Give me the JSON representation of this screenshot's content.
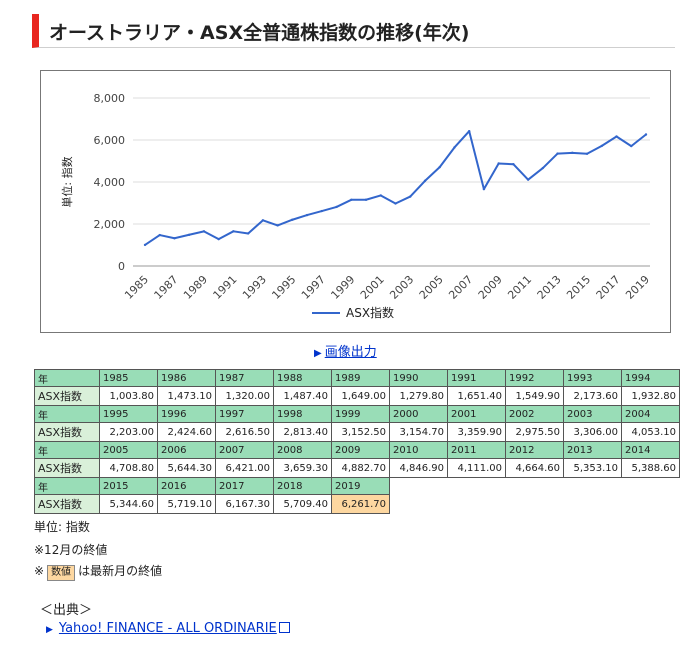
{
  "title": "オーストラリア・ASX全普通株指数の推移(年次)",
  "image_output_label": "画像出力",
  "table": {
    "year_label": "年",
    "value_label": "ASX指数",
    "rows": [
      {
        "years": [
          "1985",
          "1986",
          "1987",
          "1988",
          "1989",
          "1990",
          "1991",
          "1992",
          "1993",
          "1994"
        ],
        "values": [
          "1,003.80",
          "1,473.10",
          "1,320.00",
          "1,487.40",
          "1,649.00",
          "1,279.80",
          "1,651.40",
          "1,549.90",
          "2,173.60",
          "1,932.80"
        ]
      },
      {
        "years": [
          "1995",
          "1996",
          "1997",
          "1998",
          "1999",
          "2000",
          "2001",
          "2002",
          "2003",
          "2004"
        ],
        "values": [
          "2,203.00",
          "2,424.60",
          "2,616.50",
          "2,813.40",
          "3,152.50",
          "3,154.70",
          "3,359.90",
          "2,975.50",
          "3,306.00",
          "4,053.10"
        ]
      },
      {
        "years": [
          "2005",
          "2006",
          "2007",
          "2008",
          "2009",
          "2010",
          "2011",
          "2012",
          "2013",
          "2014"
        ],
        "values": [
          "4,708.80",
          "5,644.30",
          "6,421.00",
          "3,659.30",
          "4,882.70",
          "4,846.90",
          "4,111.00",
          "4,664.60",
          "5,353.10",
          "5,388.60"
        ]
      },
      {
        "years": [
          "2015",
          "2016",
          "2017",
          "2018",
          "2019"
        ],
        "values": [
          "5,344.60",
          "5,719.10",
          "6,167.30",
          "5,709.40",
          "6,261.70"
        ]
      }
    ],
    "latest_color": "#fdd7a0",
    "header_color": "#99ddb7"
  },
  "notes": {
    "unit": "単位: 指数",
    "december": "※12月の終値",
    "latest_prefix": "※",
    "latest_badge": "数値",
    "latest_suffix": "は最新月の終値"
  },
  "source": {
    "heading": "＜出典＞",
    "link_text": "Yahoo! FINANCE - ALL ORDINARIE"
  },
  "chart_data": {
    "type": "line",
    "title": "",
    "ylabel": "単位: 指数",
    "xlabel": "",
    "ylim": [
      0,
      8000
    ],
    "yticks": [
      "0",
      "2,000",
      "4,000",
      "6,000",
      "8,000"
    ],
    "x_tick_labels": [
      "1985",
      "1987",
      "1989",
      "1991",
      "1993",
      "1995",
      "1997",
      "1999",
      "2001",
      "2003",
      "2005",
      "2007",
      "2009",
      "2011",
      "2013",
      "2015",
      "2017",
      "2019"
    ],
    "grid": true,
    "legend_position": "bottom",
    "x": [
      1985,
      1986,
      1987,
      1988,
      1989,
      1990,
      1991,
      1992,
      1993,
      1994,
      1995,
      1996,
      1997,
      1998,
      1999,
      2000,
      2001,
      2002,
      2003,
      2004,
      2005,
      2006,
      2007,
      2008,
      2009,
      2010,
      2011,
      2012,
      2013,
      2014,
      2015,
      2016,
      2017,
      2018,
      2019
    ],
    "series": [
      {
        "name": "ASX指数",
        "color": "#3366cc",
        "values": [
          1003.8,
          1473.1,
          1320.0,
          1487.4,
          1649.0,
          1279.8,
          1651.4,
          1549.9,
          2173.6,
          1932.8,
          2203.0,
          2424.6,
          2616.5,
          2813.4,
          3152.5,
          3154.7,
          3359.9,
          2975.5,
          3306.0,
          4053.1,
          4708.8,
          5644.3,
          6421.0,
          3659.3,
          4882.7,
          4846.9,
          4111.0,
          4664.6,
          5353.1,
          5388.6,
          5344.6,
          5719.1,
          6167.3,
          5709.4,
          6261.7
        ]
      }
    ]
  }
}
